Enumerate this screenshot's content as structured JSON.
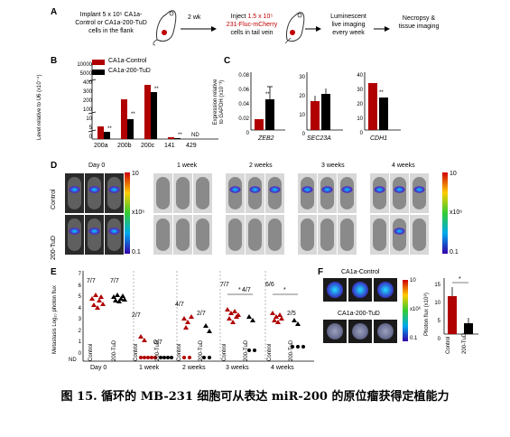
{
  "panelA": {
    "label": "A",
    "step1": "Implant 5 x 10⁵ CA1a-\nControl or CA1a-200-TuD\ncells in the flank",
    "arrow1": "2 wk",
    "step2_prefix": "Inject ",
    "step2_red1": "1.5 x 10⁵",
    "step2_red2": "231-Fluc-mCherry",
    "step2_suffix": "cells in tail vein",
    "step3": "Luminescent\nlive imaging\nevery week",
    "step4": "Necropsy &\ntissue imaging"
  },
  "panelB": {
    "label": "B",
    "ylabel": "Level relative to U6 (x10⁻⁴)",
    "legend": [
      "CA1a-Control",
      "CA1a-200-TuD"
    ],
    "yticks": [
      "10000",
      "5000",
      "400",
      "300",
      "200",
      "100",
      "10",
      "5",
      "0"
    ],
    "nd": "ND",
    "sig": "**"
  },
  "panelC": {
    "label": "C",
    "ylabel": "Expression relative\nto GAPDH (x10⁻³)",
    "plots": [
      {
        "gene": "ZEB2",
        "yticks": [
          "0.08",
          "0.06",
          "0.04",
          "0.02",
          "0"
        ]
      },
      {
        "gene": "SEC23A",
        "yticks": [
          "30",
          "20",
          "10",
          "0"
        ]
      },
      {
        "gene": "CDH1",
        "yticks": [
          "40",
          "30",
          "20",
          "10",
          "0"
        ]
      }
    ],
    "sig": "**"
  },
  "panelD": {
    "label": "D",
    "timepoints": [
      "Day 0",
      "1 week",
      "2 weeks",
      "3 weeks",
      "4 weeks"
    ],
    "rows": [
      "Control",
      "200-TuD"
    ],
    "scale": {
      "max": "10",
      "unit": "x10⁶",
      "min": "0.1"
    }
  },
  "panelE": {
    "label": "E",
    "ylabel": "Metastasis Log₁₀ photon flux",
    "yticks": [
      "7",
      "6",
      "5",
      "4",
      "3",
      "2",
      "1",
      "0"
    ],
    "nd": "ND",
    "groups": [
      {
        "time": "Day 0",
        "fracs": [
          "7/7",
          "7/7"
        ]
      },
      {
        "time": "1 week",
        "fracs": [
          "2/7",
          "0/7"
        ]
      },
      {
        "time": "2 weeks",
        "fracs": [
          "4/7",
          "2/7"
        ]
      },
      {
        "time": "3 weeks",
        "fracs": [
          "7/7",
          "4/7"
        ]
      },
      {
        "time": "4 weeks",
        "fracs": [
          "6/6",
          "2/5"
        ]
      }
    ],
    "xlabels": [
      "Control",
      "200-TuD"
    ],
    "sig": "*"
  },
  "panelF": {
    "label": "F",
    "control_label": "CA1a-Control",
    "tud_label": "CA1a-200-TuD",
    "scale": {
      "max": "10",
      "unit": "x10⁶",
      "min": "0.1"
    },
    "ylabel": "Photon flux (x10⁸)",
    "yticks": [
      "15",
      "10",
      "5",
      "0"
    ],
    "xlabels": [
      "Control",
      "200-TuD"
    ],
    "sig": "*"
  },
  "caption": "图  15.  循环的 MB-231 细胞可从表达 miR-200 的原位瘤获得定植能力"
}
